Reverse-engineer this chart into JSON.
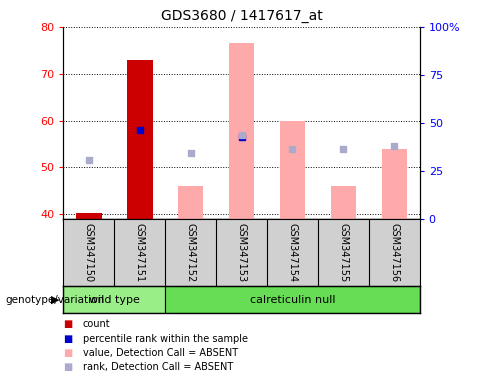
{
  "title": "GDS3680 / 1417617_at",
  "samples": [
    "GSM347150",
    "GSM347151",
    "GSM347152",
    "GSM347153",
    "GSM347154",
    "GSM347155",
    "GSM347156"
  ],
  "ylim_left": [
    39,
    80
  ],
  "ylim_right": [
    0,
    100
  ],
  "yticks_left": [
    40,
    50,
    60,
    70,
    80
  ],
  "yticks_right": [
    0,
    25,
    50,
    75,
    100
  ],
  "ytick_labels_right": [
    "0",
    "25",
    "50",
    "75",
    "100%"
  ],
  "red_bars": [
    40.3,
    73.0,
    null,
    null,
    null,
    null,
    null
  ],
  "pink_bars": [
    null,
    null,
    46.0,
    76.5,
    60.0,
    46.0,
    54.0
  ],
  "blue_squares": [
    null,
    58.0,
    null,
    56.5,
    null,
    null,
    null
  ],
  "light_blue_squares": [
    51.5,
    null,
    53.0,
    57.0,
    54.0,
    54.0,
    54.5
  ],
  "bar_width": 0.5,
  "red_color": "#cc0000",
  "pink_color": "#ffaaaa",
  "blue_color": "#0000cc",
  "light_blue_color": "#aaaacc",
  "wt_color": "#99ee88",
  "cr_color": "#66dd55",
  "sample_bg_color": "#d0d0d0",
  "legend_label_count": "count",
  "legend_label_percentile": "percentile rank within the sample",
  "legend_label_value_absent": "value, Detection Call = ABSENT",
  "legend_label_rank_absent": "rank, Detection Call = ABSENT",
  "xlabel_genotype": "genotype/variation",
  "wild_type_samples": 2,
  "calreticulin_samples": 5
}
